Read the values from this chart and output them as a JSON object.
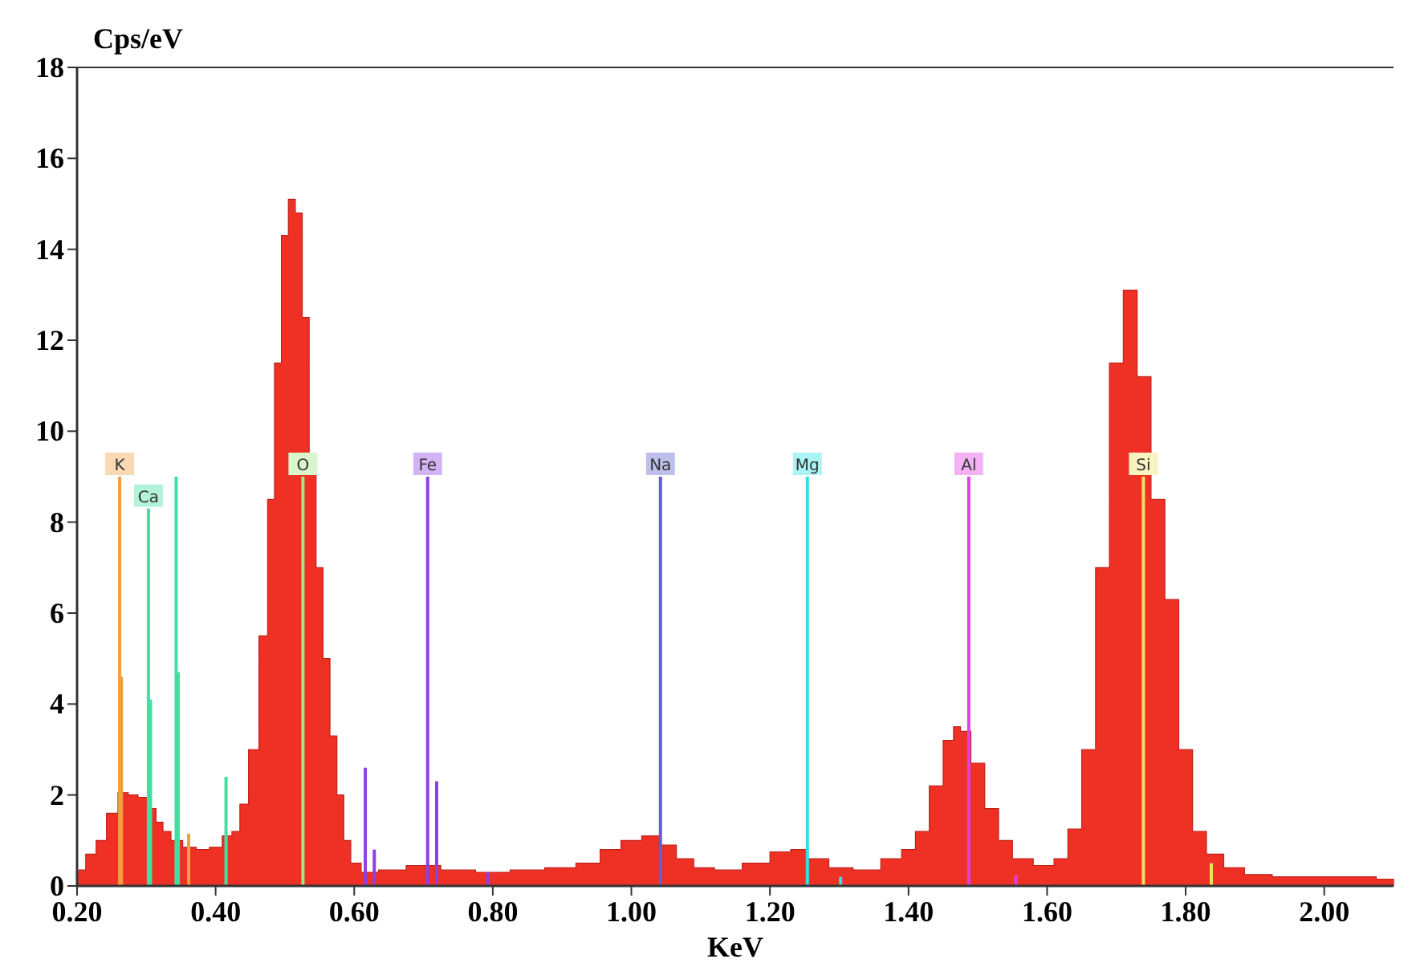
{
  "chart_data": {
    "type": "area",
    "ylabel": "Cps/eV",
    "xlabel": "KeV",
    "xlim": [
      0.2,
      2.1
    ],
    "ylim": [
      0,
      18
    ],
    "xticks": [
      {
        "value": 0.2,
        "label": "0.20"
      },
      {
        "value": 0.4,
        "label": "0.40"
      },
      {
        "value": 0.6,
        "label": "0.60"
      },
      {
        "value": 0.8,
        "label": "0.80"
      },
      {
        "value": 1.0,
        "label": "1.00"
      },
      {
        "value": 1.2,
        "label": "1.20"
      },
      {
        "value": 1.4,
        "label": "1.40"
      },
      {
        "value": 1.6,
        "label": "1.60"
      },
      {
        "value": 1.8,
        "label": "1.80"
      },
      {
        "value": 2.0,
        "label": "2.00"
      }
    ],
    "yticks": [
      0,
      2,
      4,
      6,
      8,
      10,
      12,
      14,
      16,
      18
    ],
    "grid": false,
    "series": [
      {
        "color": "#ee3124",
        "x": [
          0.2,
          0.205,
          0.22,
          0.235,
          0.25,
          0.268,
          0.28,
          0.296,
          0.31,
          0.318,
          0.33,
          0.341,
          0.364,
          0.38,
          0.402,
          0.417,
          0.43,
          0.44,
          0.455,
          0.47,
          0.48,
          0.49,
          0.5,
          0.51,
          0.52,
          0.53,
          0.54,
          0.55,
          0.56,
          0.57,
          0.58,
          0.59,
          0.6,
          0.62,
          0.65,
          0.7,
          0.75,
          0.8,
          0.85,
          0.9,
          0.94,
          0.97,
          1.0,
          1.03,
          1.05,
          1.08,
          1.1,
          1.14,
          1.18,
          1.22,
          1.24,
          1.27,
          1.3,
          1.34,
          1.38,
          1.4,
          1.42,
          1.44,
          1.46,
          1.47,
          1.48,
          1.5,
          1.52,
          1.54,
          1.56,
          1.6,
          1.62,
          1.64,
          1.66,
          1.68,
          1.7,
          1.72,
          1.74,
          1.76,
          1.78,
          1.8,
          1.82,
          1.84,
          1.87,
          1.9,
          1.95,
          2.0,
          2.05,
          2.1
        ],
        "values": [
          0.3,
          0.35,
          0.7,
          1.0,
          1.6,
          2.05,
          2.0,
          1.95,
          1.7,
          1.4,
          1.2,
          1.0,
          0.85,
          0.8,
          0.85,
          1.1,
          1.2,
          1.8,
          3.0,
          5.5,
          8.5,
          11.5,
          14.3,
          15.1,
          14.8,
          12.5,
          9.5,
          7.0,
          5.0,
          3.3,
          2.0,
          1.0,
          0.5,
          0.3,
          0.35,
          0.45,
          0.35,
          0.3,
          0.35,
          0.4,
          0.5,
          0.8,
          1.0,
          1.1,
          0.9,
          0.6,
          0.4,
          0.35,
          0.5,
          0.75,
          0.8,
          0.6,
          0.4,
          0.35,
          0.6,
          0.8,
          1.2,
          2.2,
          3.2,
          3.5,
          3.4,
          2.7,
          1.7,
          1.0,
          0.6,
          0.45,
          0.6,
          1.25,
          3.0,
          7.0,
          11.5,
          13.1,
          11.2,
          8.5,
          6.3,
          3.0,
          1.2,
          0.7,
          0.4,
          0.25,
          0.2,
          0.2,
          0.2,
          0.15
        ]
      },
      {
        "type": "bar",
        "name": "K",
        "color": "#f0a040",
        "x": [
          0.2615,
          0.264,
          0.361
        ],
        "values": [
          9,
          4.6,
          1.15
        ]
      },
      {
        "type": "bar",
        "name": "Ca",
        "color": "#40e0a0",
        "x": [
          0.303,
          0.306
        ],
        "values": [
          8.3,
          4.1
        ]
      },
      {
        "type": "bar",
        "color": "#40e0a0",
        "x": [
          0.343,
          0.346,
          0.415
        ],
        "values": [
          9,
          4.7,
          2.4
        ]
      },
      {
        "type": "bar",
        "name": "O",
        "color": "#a0e880",
        "x": [
          0.526
        ],
        "values": [
          9
        ]
      },
      {
        "type": "bar",
        "name": "Fe",
        "color": "#9040e0",
        "x": [
          0.616,
          0.629,
          0.706,
          0.719,
          0.793
        ],
        "values": [
          2.6,
          0.8,
          9,
          2.3,
          0.3
        ]
      },
      {
        "type": "bar",
        "name": "Na",
        "color": "#6060d0",
        "x": [
          1.042
        ],
        "values": [
          9
        ]
      },
      {
        "type": "bar",
        "name": "Mg",
        "color": "#30e0e8",
        "x": [
          1.254,
          1.302
        ],
        "values": [
          9,
          0.2
        ]
      },
      {
        "type": "bar",
        "name": "Al",
        "color": "#e040e0",
        "x": [
          1.487,
          1.555
        ],
        "values": [
          9,
          0.23
        ]
      },
      {
        "type": "bar",
        "name": "Si",
        "color": "#f0e060",
        "x": [
          1.739,
          1.837
        ],
        "values": [
          9,
          0.5
        ]
      }
    ]
  }
}
